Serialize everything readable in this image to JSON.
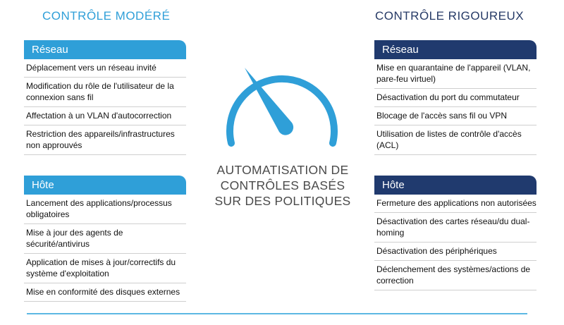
{
  "left": {
    "title": "CONTRÔLE MODÉRÉ",
    "sections": [
      {
        "header": "Réseau",
        "items": [
          "Déplacement vers un réseau invité",
          "Modification du rôle de l'utilisateur de la connexion sans fil",
          "Affectation à un VLAN d'autocorrection",
          "Restriction des appareils/infrastructures non approuvés"
        ]
      },
      {
        "header": "Hôte",
        "items": [
          "Lancement des applications/processus obligatoires",
          "Mise à jour des agents de sécurité/antivirus",
          "Application de mises à jour/correctifs du système d'exploitation",
          "Mise en conformité des disques externes"
        ]
      }
    ]
  },
  "right": {
    "title": "CONTRÔLE RIGOUREUX",
    "sections": [
      {
        "header": "Réseau",
        "items": [
          "Mise en quarantaine de l'appareil (VLAN, pare-feu virtuel)",
          "Désactivation du port du commutateur",
          "Blocage de l'accès sans fil ou VPN",
          "Utilisation de listes de contrôle d'accès (ACL)"
        ]
      },
      {
        "header": "Hôte",
        "items": [
          "Fermeture des applications non autorisées",
          "Désactivation des cartes réseau/du dual-homing",
          "Désactivation des périphériques",
          "Déclenchement des systèmes/actions de correction"
        ]
      }
    ]
  },
  "center": {
    "lines": [
      "AUTOMATISATION DE",
      "CONTRÔLES BASÉS",
      "SUR DES POLITIQUES"
    ],
    "gauge_icon": "speedometer-icon",
    "gauge_color": "#2f9fd8"
  },
  "colors": {
    "moderate_accent": "#2f9fd8",
    "rigorous_accent": "#203a6e"
  }
}
